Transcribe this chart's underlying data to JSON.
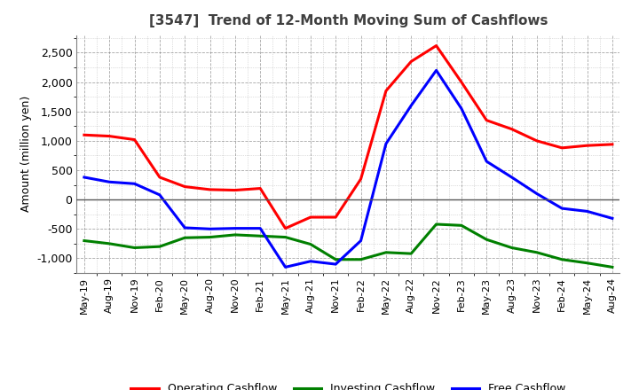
{
  "title": "[3547]  Trend of 12-Month Moving Sum of Cashflows",
  "ylabel": "Amount (million yen)",
  "ylim": [
    -1250,
    2800
  ],
  "yticks": [
    -1000,
    -500,
    0,
    500,
    1000,
    1500,
    2000,
    2500
  ],
  "x_labels": [
    "May-19",
    "Aug-19",
    "Nov-19",
    "Feb-20",
    "May-20",
    "Aug-20",
    "Nov-20",
    "Feb-21",
    "May-21",
    "Aug-21",
    "Nov-21",
    "Feb-22",
    "May-22",
    "Aug-22",
    "Nov-22",
    "Feb-23",
    "May-23",
    "Aug-23",
    "Nov-23",
    "Feb-24",
    "May-24",
    "Aug-24"
  ],
  "operating_cashflow": [
    1100,
    1080,
    1020,
    380,
    220,
    170,
    160,
    190,
    -490,
    -300,
    -300,
    350,
    1850,
    2350,
    2620,
    2000,
    1350,
    1200,
    1000,
    880,
    920,
    940
  ],
  "investing_cashflow": [
    -700,
    -750,
    -820,
    -800,
    -650,
    -640,
    -600,
    -620,
    -640,
    -760,
    -1020,
    -1020,
    -900,
    -920,
    -420,
    -440,
    -680,
    -820,
    -900,
    -1020,
    -1080,
    -1150
  ],
  "free_cashflow": [
    380,
    300,
    270,
    80,
    -480,
    -500,
    -490,
    -490,
    -1150,
    -1050,
    -1100,
    -700,
    950,
    1600,
    2200,
    1550,
    650,
    380,
    100,
    -150,
    -200,
    -320
  ],
  "op_color": "#ff0000",
  "inv_color": "#008000",
  "free_color": "#0000ff",
  "background_color": "#ffffff",
  "grid_color": "#808080",
  "title_color": "#404040",
  "line_width": 2.2
}
